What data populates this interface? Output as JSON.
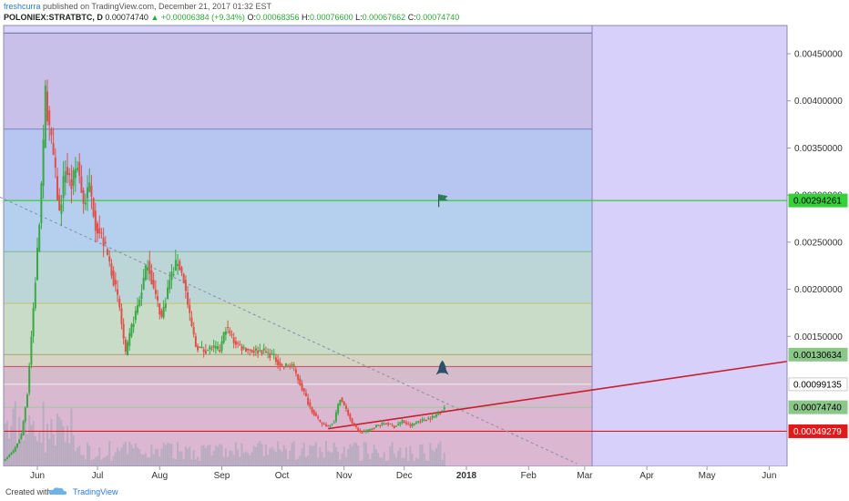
{
  "header": {
    "author": "freshcurra",
    "published": "published on TradingView.com, December 21, 2017 01:32 EST",
    "symbol": "POLONIEX:STRATBTC, D",
    "last": "0.00074740",
    "change": "▲ +0.00006384 (+9.34%)",
    "o_label": "O:",
    "o_value": "0.00068356",
    "h_label": "H:",
    "h_value": "0.00076600",
    "l_label": "L:",
    "l_value": "0.00067662",
    "c_label": "C:",
    "c_value": "0.00074740"
  },
  "footer": {
    "created": "Created with",
    "brand": "TradingView"
  },
  "colors": {
    "up": "#3aa845",
    "down": "#e0504a",
    "green_line": "#37d03d",
    "red_line": "#e2191b",
    "trend": "#c81e2d",
    "future": "#d6d0fb",
    "volume": "#8f9fae"
  },
  "chart_data": {
    "type": "candlestick",
    "symbol": "POLONIEX:STRATBTC",
    "interval": "D",
    "y_axis_ticks": [
      "0.00450000",
      "0.00400000",
      "0.00350000",
      "0.00300000",
      "0.00250000",
      "0.00200000",
      "0.00150000"
    ],
    "ylim": [
      0.00012,
      0.0048
    ],
    "x_axis_ticks": [
      {
        "label": "Jun",
        "date": "2017-06-01"
      },
      {
        "label": "Jul",
        "date": "2017-07-01"
      },
      {
        "label": "Aug",
        "date": "2017-08-01"
      },
      {
        "label": "Sep",
        "date": "2017-09-01"
      },
      {
        "label": "Oct",
        "date": "2017-10-01"
      },
      {
        "label": "Nov",
        "date": "2017-11-01"
      },
      {
        "label": "Dec",
        "date": "2017-12-01"
      },
      {
        "label": "2018",
        "date": "2018-01-01"
      },
      {
        "label": "Feb",
        "date": "2018-02-01"
      },
      {
        "label": "Mar",
        "date": "2018-03-01"
      },
      {
        "label": "Apr",
        "date": "2018-04-01"
      },
      {
        "label": "May",
        "date": "2018-05-01"
      },
      {
        "label": "Jun",
        "date": "2018-06-01"
      }
    ],
    "price_path": [
      [
        "2017-05-15",
        0.00018
      ],
      [
        "2017-05-20",
        0.00028
      ],
      [
        "2017-05-24",
        0.00045
      ],
      [
        "2017-05-27",
        0.0009
      ],
      [
        "2017-05-30",
        0.0018
      ],
      [
        "2017-06-02",
        0.0027
      ],
      [
        "2017-06-04",
        0.0035
      ],
      [
        "2017-06-05",
        0.0041
      ],
      [
        "2017-06-07",
        0.0037
      ],
      [
        "2017-06-09",
        0.0034
      ],
      [
        "2017-06-12",
        0.0028
      ],
      [
        "2017-06-15",
        0.0033
      ],
      [
        "2017-06-18",
        0.0031
      ],
      [
        "2017-06-21",
        0.00335
      ],
      [
        "2017-06-24",
        0.0029
      ],
      [
        "2017-06-27",
        0.0031
      ],
      [
        "2017-06-30",
        0.0027
      ],
      [
        "2017-07-04",
        0.0025
      ],
      [
        "2017-07-08",
        0.0022
      ],
      [
        "2017-07-12",
        0.0018
      ],
      [
        "2017-07-15",
        0.0013
      ],
      [
        "2017-07-18",
        0.0016
      ],
      [
        "2017-07-22",
        0.0019
      ],
      [
        "2017-07-26",
        0.0023
      ],
      [
        "2017-07-29",
        0.002
      ],
      [
        "2017-08-02",
        0.0017
      ],
      [
        "2017-08-06",
        0.0021
      ],
      [
        "2017-08-10",
        0.0023
      ],
      [
        "2017-08-13",
        0.0021
      ],
      [
        "2017-08-16",
        0.0017
      ],
      [
        "2017-08-19",
        0.0014
      ],
      [
        "2017-08-23",
        0.00135
      ],
      [
        "2017-08-27",
        0.00138
      ],
      [
        "2017-08-31",
        0.00135
      ],
      [
        "2017-09-03",
        0.0016
      ],
      [
        "2017-09-07",
        0.00145
      ],
      [
        "2017-09-11",
        0.00138
      ],
      [
        "2017-09-16",
        0.00135
      ],
      [
        "2017-09-21",
        0.00135
      ],
      [
        "2017-09-26",
        0.0013
      ],
      [
        "2017-10-01",
        0.00118
      ],
      [
        "2017-10-06",
        0.0012
      ],
      [
        "2017-10-10",
        0.001
      ],
      [
        "2017-10-15",
        0.00075
      ],
      [
        "2017-10-20",
        0.00058
      ],
      [
        "2017-10-24",
        0.00055
      ],
      [
        "2017-10-27",
        0.0006
      ],
      [
        "2017-10-30",
        0.00085
      ],
      [
        "2017-11-02",
        0.00072
      ],
      [
        "2017-11-05",
        0.00058
      ],
      [
        "2017-11-09",
        0.00048
      ],
      [
        "2017-11-13",
        0.0005
      ],
      [
        "2017-11-17",
        0.00055
      ],
      [
        "2017-11-22",
        0.00058
      ],
      [
        "2017-11-26",
        0.00054
      ],
      [
        "2017-11-30",
        0.0006
      ],
      [
        "2017-12-04",
        0.00055
      ],
      [
        "2017-12-08",
        0.0006
      ],
      [
        "2017-12-12",
        0.00062
      ],
      [
        "2017-12-16",
        0.00065
      ],
      [
        "2017-12-21",
        0.0007474
      ]
    ],
    "price_labels": [
      {
        "value": 0.00294261,
        "label": "0.00294261",
        "style": "green"
      },
      {
        "value": 0.00130634,
        "label": "0.00130634",
        "style": "green-dark"
      },
      {
        "value": 0.00099135,
        "label": "0.00099135",
        "style": "white"
      },
      {
        "value": 0.0007474,
        "label": "0.00074740",
        "style": "green-dark"
      },
      {
        "value": 0.00049279,
        "label": "0.00049279",
        "style": "red"
      }
    ],
    "fib_levels": [
      0.00472,
      0.0037,
      0.00294261,
      0.0024,
      0.00185,
      0.00130634,
      0.00118,
      0.00099135,
      0.0007474
    ],
    "horizontal_lines": [
      {
        "value": 0.00294261,
        "color": "green"
      },
      {
        "value": 0.00049279,
        "color": "red"
      }
    ],
    "trendlines": [
      {
        "from": {
          "date": "2017-05-01",
          "value": 0.0031
        },
        "to": {
          "date": "2018-02-25",
          "value": 0.00015
        },
        "style": "dashed"
      },
      {
        "from": {
          "date": "2017-10-24",
          "value": 0.00052
        },
        "to": {
          "date": "2018-06-15",
          "value": 0.00125
        },
        "style": "solid-red"
      }
    ],
    "annotations": [
      {
        "type": "flag",
        "date": "2017-12-20",
        "value": 0.00296
      },
      {
        "type": "rocket",
        "date": "2017-12-20",
        "value": 0.00116
      }
    ]
  }
}
